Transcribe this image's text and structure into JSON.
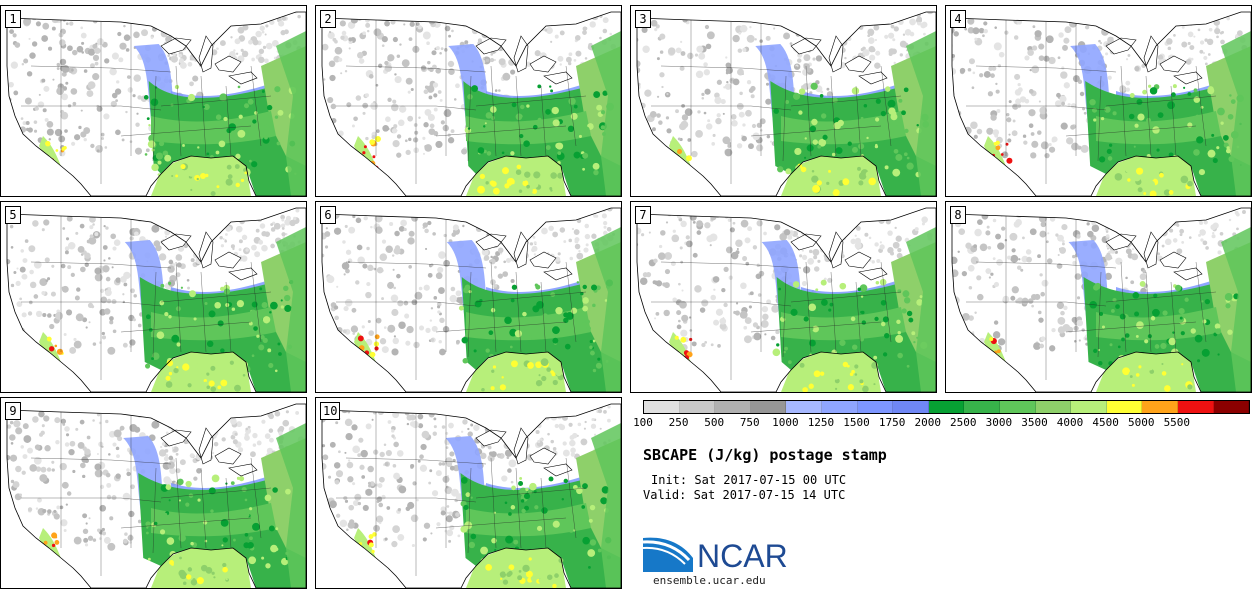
{
  "panels": [
    {
      "label": "1",
      "seed": 11
    },
    {
      "label": "2",
      "seed": 23
    },
    {
      "label": "3",
      "seed": 37
    },
    {
      "label": "4",
      "seed": 41
    },
    {
      "label": "5",
      "seed": 53
    },
    {
      "label": "6",
      "seed": 67
    },
    {
      "label": "7",
      "seed": 71
    },
    {
      "label": "8",
      "seed": 89
    },
    {
      "label": "9",
      "seed": 97
    },
    {
      "label": "10",
      "seed": 103
    }
  ],
  "colorbar": {
    "colors": [
      "#e0e0e0",
      "#c8c8c8",
      "#b0b0b0",
      "#969696",
      "#a6b8ff",
      "#8fa5ff",
      "#7d96ff",
      "#6f87f5",
      "#07a033",
      "#37b24a",
      "#5fc65a",
      "#8ed06a",
      "#b7ef7a",
      "#ffff33",
      "#ffa31a",
      "#ee1111",
      "#8b0000"
    ],
    "ticks": [
      "100",
      "250",
      "500",
      "750",
      "1000",
      "1250",
      "1500",
      "1750",
      "2000",
      "2500",
      "3000",
      "3500",
      "4000",
      "4500",
      "5000",
      "5500"
    ]
  },
  "title": "SBCAPE (J/kg) postage stamp",
  "init": "Init: Sat 2017-07-15 00 UTC",
  "valid": "Valid: Sat 2017-07-15 14 UTC",
  "logo": {
    "text": "NCAR",
    "url": "ensemble.ucar.edu"
  }
}
